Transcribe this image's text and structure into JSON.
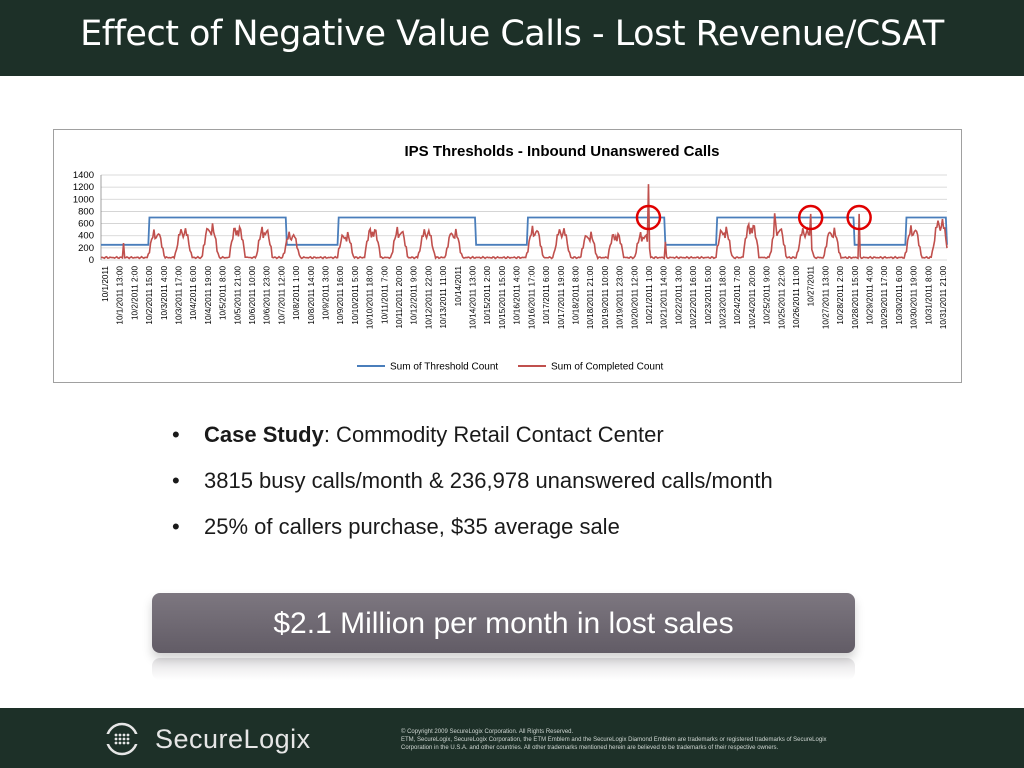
{
  "slide": {
    "title": "Effect of Negative Value Calls - Lost Revenue/CSAT",
    "bullets": [
      {
        "bold": "Case Study",
        "rest": ": Commodity Retail Contact Center"
      },
      {
        "bold": "",
        "rest": "3815 busy calls/month & 236,978 unanswered calls/month"
      },
      {
        "bold": "",
        "rest": "25% of callers purchase, $35 average sale"
      }
    ],
    "bullet_symbol": "•",
    "banner": "$2.1 Million per month in lost sales",
    "logo_text": "SecureLogix",
    "copyright_lines": [
      "© Copyright 2009 SecureLogix Corporation.  All Rights Reserved.",
      "ETM, SecureLogix, SecureLogix Corporation, the ETM Emblem and the SecureLogix Diamond Emblem are trademarks or registered trademarks of SecureLogix",
      "Corporation in the U.S.A. and other countries. All other trademarks mentioned herein are believed to be trademarks of their respective owners."
    ],
    "colors": {
      "header_bg": "#1d3028",
      "banner_bg": "#6c6670",
      "threshold": "#4a7ebb",
      "completed": "#c0504d",
      "highlight": "#e00000"
    },
    "icons": {
      "logo": "securelogix-diamond-logo"
    }
  },
  "chart_data": {
    "type": "line",
    "title": "IPS Thresholds - Inbound Unanswered Calls",
    "ylim": [
      0,
      1400
    ],
    "yticks": [
      0,
      200,
      400,
      600,
      800,
      1000,
      1200,
      1400
    ],
    "x_tick_labels": [
      "10/1/2011",
      "10/1/2011 13:00",
      "10/2/2011 2:00",
      "10/2/2011 15:00",
      "10/3/2011 4:00",
      "10/3/2011 17:00",
      "10/4/2011 6:00",
      "10/4/2011 19:00",
      "10/5/2011 8:00",
      "10/5/2011 21:00",
      "10/6/2011 10:00",
      "10/6/2011 23:00",
      "10/7/2011 12:00",
      "10/8/2011 1:00",
      "10/8/2011 14:00",
      "10/9/2011 3:00",
      "10/9/2011 16:00",
      "10/10/2011 5:00",
      "10/10/2011 18:00",
      "10/11/2011 7:00",
      "10/11/2011 20:00",
      "10/12/2011 9:00",
      "10/12/2011 22:00",
      "10/13/2011 11:00",
      "10/14/2011",
      "10/14/2011 13:00",
      "10/15/2011 2:00",
      "10/15/2011 15:00",
      "10/16/2011 4:00",
      "10/16/2011 17:00",
      "10/17/2011 6:00",
      "10/17/2011 19:00",
      "10/18/2011 8:00",
      "10/18/2011 21:00",
      "10/19/2011 10:00",
      "10/19/2011 23:00",
      "10/20/2011 12:00",
      "10/21/2011 1:00",
      "10/21/2011 14:00",
      "10/22/2011 3:00",
      "10/22/2011 16:00",
      "10/23/2011 5:00",
      "10/23/2011 18:00",
      "10/24/2011 7:00",
      "10/24/2011 20:00",
      "10/25/2011 9:00",
      "10/25/2011 22:00",
      "10/26/2011 11:00",
      "10/27/2011",
      "10/27/2011 13:00",
      "10/28/2011 2:00",
      "10/28/2011 15:00",
      "10/29/2011 4:00",
      "10/29/2011 17:00",
      "10/30/2011 6:00",
      "10/30/2011 19:00",
      "10/31/2011 8:00",
      "10/31/2011 21:00"
    ],
    "x_start": "10/1/2011",
    "hours": 751,
    "series": [
      {
        "name": "Sum of Threshold Count",
        "color": "#4a7ebb",
        "base": 250,
        "peak": 700,
        "high_blocks_hours": [
          [
            43,
            69
          ],
          [
            67,
            93
          ],
          [
            91,
            117
          ],
          [
            115,
            141
          ],
          [
            139,
            165
          ],
          [
            211,
            237
          ],
          [
            235,
            261
          ],
          [
            259,
            285
          ],
          [
            283,
            309
          ],
          [
            307,
            333
          ],
          [
            379,
            405
          ],
          [
            403,
            429
          ],
          [
            427,
            453
          ],
          [
            451,
            477
          ],
          [
            475,
            501
          ],
          [
            547,
            573
          ],
          [
            571,
            597
          ],
          [
            595,
            621
          ],
          [
            619,
            645
          ],
          [
            643,
            669
          ],
          [
            715,
            741
          ],
          [
            739,
            751
          ]
        ]
      },
      {
        "name": "Sum of Completed Count",
        "color": "#c0504d",
        "night": 40,
        "day_peak": 580,
        "day_peaks_hours": [
          49,
          73,
          97,
          121,
          145,
          169,
          217,
          241,
          265,
          289,
          313,
          385,
          409,
          433,
          457,
          481,
          553,
          577,
          601,
          625,
          649,
          721,
          745
        ],
        "spikes": [
          {
            "hour": 20,
            "value": 280
          },
          {
            "hour": 486,
            "value": 1250
          },
          {
            "hour": 501,
            "value": 300
          },
          {
            "hour": 630,
            "value": 760
          },
          {
            "hour": 673,
            "value": 760
          },
          {
            "hour": 598,
            "value": 770
          }
        ],
        "day_amplitudes": [
          510,
          560,
          610,
          590,
          560,
          480,
          470,
          560,
          550,
          540,
          520,
          570,
          560,
          470,
          470,
          470,
          560,
          640,
          600,
          560,
          540,
          580,
          720,
          590,
          560
        ]
      }
    ],
    "legend": [
      "Sum of Threshold Count",
      "Sum of Completed Count"
    ],
    "legend_position": "bottom",
    "grid": true,
    "highlighted_hours": [
      486,
      630,
      673
    ]
  }
}
